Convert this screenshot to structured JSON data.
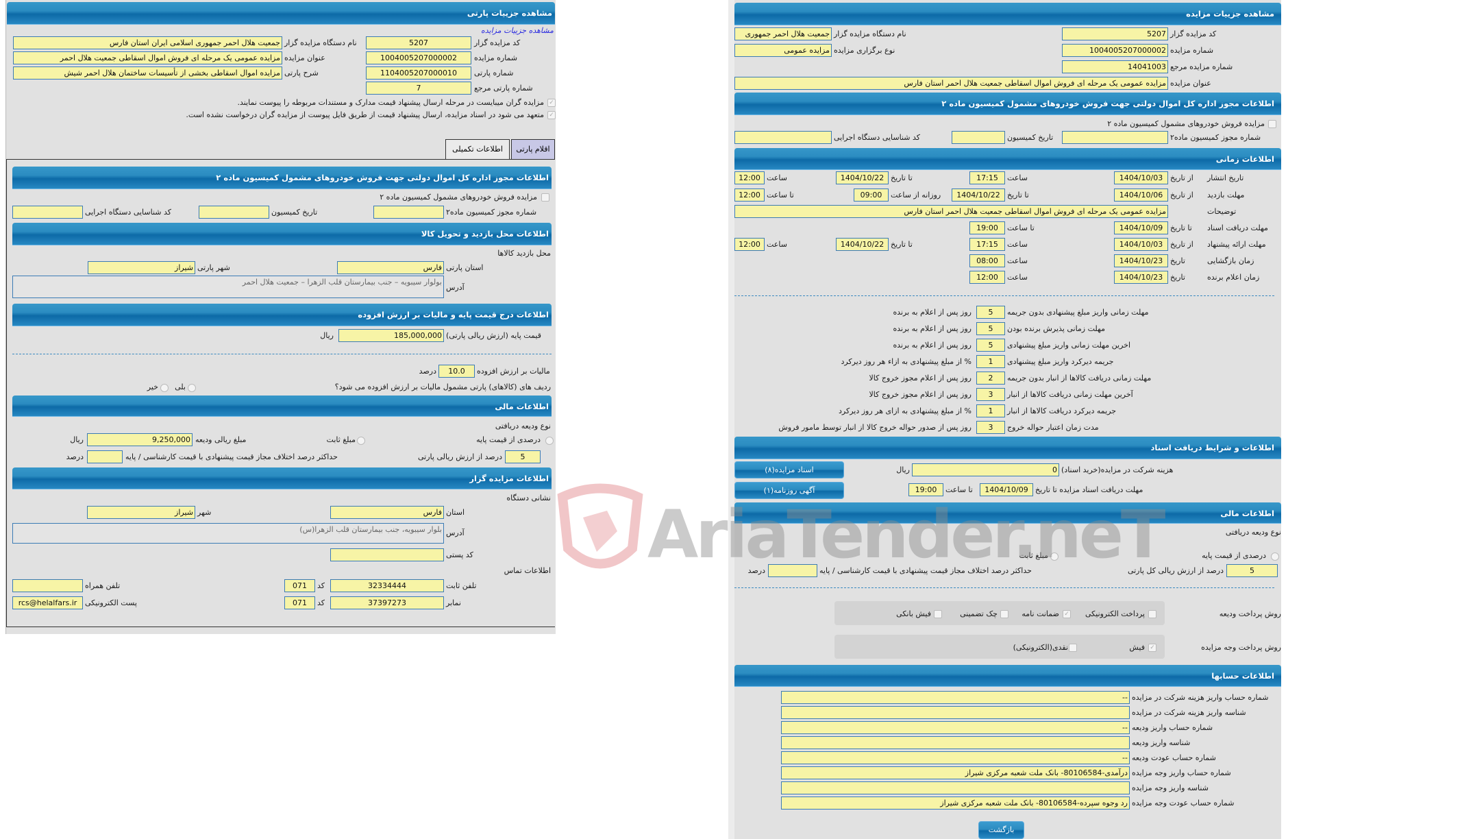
{
  "colors": {
    "header": "#2b8cc1",
    "field": "#f7f4a6",
    "panel": "#e1e1e1",
    "watermark_logo": "#e8a0a4"
  },
  "watermark": "AriaTender.neT",
  "p": {
    "header": "مشاهده جزییات پارتی",
    "link": "مشاهده جزییات مزایده",
    "code_l": "کد مزایده گزار",
    "code_v": "5207",
    "org_l": "نام دستگاه مزایده گزار",
    "org_v": "جمعیت هلال احمر جمهوری اسلامی ایران استان فارس",
    "ano_l": "شماره مزایده",
    "ano_v": "1004005207000002",
    "atitle_l": "عنوان مزایده",
    "atitle_v": "مزایده عمومی یک مرحله ای فروش اموال اسقاطی جمعیت هلال احمر",
    "pno_l": "شماره پارتی",
    "pno_v": "1104005207000010",
    "pdesc_l": "شرح پارتی",
    "pdesc_v": "مزایده اموال اسقاطی بخشی از تأسیسات ساختمان هلال احمر شیش",
    "pref_l": "شماره پارتی مرجع",
    "pref_v": "7",
    "check1": "مزایده گران میبایست در مرحله ارسال پیشنهاد قیمت مدارک و مستندات مربوطه را پیوست نمایند.",
    "check2": "متعهد می شود در اسناد مزایده، ارسال پیشنهاد قیمت از طریق فایل پیوست از مزایده گران درخواست نشده است.",
    "tab_items": "اقلام پارتی",
    "tab_extra": "اطلاعات تکمیلی",
    "lic_header": "اطلاعات مجوز اداره کل اموال دولتی جهت فروش خودروهای مشمول کمیسیون ماده ۲",
    "lic_check": "مزایده فروش خودروهای مشمول کمیسیون ماده ۲",
    "lic_no": "شماره مجوز کمیسیون ماده۲",
    "lic_date": "تاریخ کمیسیون",
    "lic_org": "کد شناسایی دستگاه اجرایی",
    "visit_header": "اطلاعات محل بازدید و تحویل کالا",
    "visit_place": "محل بازدید کالاها",
    "prov_l": "استان پارتی",
    "prov_v": "فارس",
    "city_l": "شهر پارتی",
    "city_v": "شیراز",
    "addr_l": "آدرس",
    "addr_v": "بولوار سیبویه – جنب بیمارستان قلب الزهرا – جمعیت هلال احمر",
    "price_header": "اطلاعات درج قیمت پایه و مالیات بر ارزش افزوده",
    "price_l": "قیمت پایه (ارزش ریالی پارتی)",
    "price_v": "185,000,000",
    "rial": "ریال",
    "vat_l": "مالیات بر ارزش افزوده",
    "vat_v": "10.0",
    "percent": "درصد",
    "vat_q": "ردیف های (کالاهای) پارتی مشمول مالیات بر ارزش افزوده می شود؟",
    "yes": "بلی",
    "no": "خیر",
    "fin_header": "اطلاعات مالی",
    "dep_type": "نوع ودیعه دریافتی",
    "dep_pct": "درصدی از قیمت پایه",
    "dep_fixed": "مبلغ ثابت",
    "dep_amount_l": "مبلغ ریالی ودیعه",
    "dep_amount_v": "9,250,000",
    "dep_pct_v": "5",
    "dep_pct_suffix": "درصد از ارزش ریالی پارتی",
    "maxdiff_l": "حداکثر درصد اختلاف مجاز قیمت پیشنهادی با قیمت کارشناسی / پایه",
    "org_header": "اطلاعات مزایده گزار",
    "org_addr_title": "نشانی دستگاه",
    "oprov_l": "استان",
    "oprov_v": "فارس",
    "ocity_l": "شهر",
    "ocity_v": "شیراز",
    "oaddr_l": "آدرس",
    "oaddr_v": "بلوار سیبویه، جنب بیمارستان قلب الزهرا(س)",
    "postal_l": "کد پستی",
    "contact": "اطلاعات تماس",
    "phone_l": "تلفن ثابت",
    "phone_v": "32334444",
    "code_short": "کد",
    "phone_code": "071",
    "mobile_l": "تلفن همراه",
    "fax_l": "نمابر",
    "fax_v": "37397273",
    "fax_code": "071",
    "email_l": "پست الکترونیکی",
    "email_v": "rcs@helalfars.ir"
  },
  "a": {
    "header": "مشاهده جزییات مزایده",
    "code_l": "کد مزایده گزار",
    "code_v": "5207",
    "org_l": "نام دستگاه مزایده گزار",
    "org_v": "جمعیت هلال احمر جمهوری",
    "ano_l": "شماره مزایده",
    "ano_v": "1004005207000002",
    "type_l": "نوع برگزاری مزایده",
    "type_v": "مزایده عمومی",
    "ref_l": "شماره مزایده مرجع",
    "ref_v": "14041003",
    "title_l": "عنوان مزایده",
    "title_v": "مزایده عمومی یک مرحله ای فروش اموال اسقاطی جمعیت هلال احمر استان فارس",
    "lic_header": "اطلاعات مجوز اداره کل اموال دولتی جهت فروش خودروهای مشمول کمیسیون ماده ۲",
    "lic_check": "مزایده فروش خودروهای مشمول کمیسیون ماده ۲",
    "lic_no": "شماره مجوز کمیسیون ماده۲",
    "lic_date": "تاریخ کمیسیون",
    "lic_org": "کد شناسایی دستگاه اجرایی",
    "time_header": "اطلاعات زمانی",
    "from_date": "از تاریخ",
    "to_date": "تا تاریخ",
    "date": "تاریخ",
    "hour": "ساعت",
    "to_hour": "تا ساعت",
    "daily_from": "روزانه از ساعت",
    "pub_l": "تاریخ انتشار",
    "pub_from": "1404/10/03",
    "pub_from_t": "17:15",
    "pub_to": "1404/10/22",
    "pub_to_t": "12:00",
    "visit_l": "مهلت بازدید",
    "visit_from": "1404/10/06",
    "visit_to": "1404/10/22",
    "visit_t1": "09:00",
    "visit_t2": "12:00",
    "desc_l": "توضیحات",
    "desc_v": "مزایده عمومی یک مرحله ای فروش اموال اسقاطی جمعیت هلال احمر استان فارس",
    "docs_l": "مهلت دریافت اسناد",
    "docs_to": "1404/10/09",
    "docs_t": "19:00",
    "bid_l": "مهلت ارائه پیشنهاد",
    "bid_from": "1404/10/03",
    "bid_from_t": "17:15",
    "bid_to": "1404/10/22",
    "bid_to_t": "12:00",
    "open_l": "زمان بازگشایی",
    "open_d": "1404/10/23",
    "open_t": "08:00",
    "win_l": "زمان اعلام برنده",
    "win_d": "1404/10/23",
    "win_t": "12:00",
    "rules": [
      {
        "l": "مهلت زمانی واریز مبلغ پیشنهادی بدون جریمه",
        "v": "5",
        "s": "روز پس از اعلام به برنده"
      },
      {
        "l": "مهلت زمانی پذیرش برنده بودن",
        "v": "5",
        "s": "روز پس از اعلام به برنده"
      },
      {
        "l": "اخرین مهلت زمانی واریز مبلغ پیشنهادی",
        "v": "5",
        "s": "روز پس از اعلام به برنده"
      },
      {
        "l": "جریمه دیرکرد واریز مبلغ پیشنهادی",
        "v": "1",
        "s": "% از مبلغ پیشنهادی به ازاء هر روز دیرکرد"
      },
      {
        "l": "مهلت زمانی دریافت کالاها از انبار بدون جریمه",
        "v": "2",
        "s": "روز پس از اعلام مجوز خروج کالا"
      },
      {
        "l": "آخرین مهلت زمانی دریافت کالاها از انبار",
        "v": "3",
        "s": "روز پس از اعلام مجوز خروج کالا"
      },
      {
        "l": "جریمه دیرکرد دریافت کالاها از انبار",
        "v": "1",
        "s": "% از مبلغ پیشنهادی به ازای هر روز دیرکرد"
      },
      {
        "l": "مدت زمان اعتبار حواله خروج",
        "v": "3",
        "s": "روز پس از صدور حواله خروج کالا از انبار توسط مامور فروش"
      }
    ],
    "doc_header": "اطلاعات و شرایط دریافت اسناد",
    "btn_docs": "اسناد مزایده(۸)",
    "btn_ad": "آگهی روزنامه(۱)",
    "fee_l": "هزینه شرکت در مزایده(خرید اسناد)",
    "fee_v": "0",
    "rial": "ریال",
    "dl_l": "مهلت دریافت اسناد مزایده تا تاریخ",
    "dl_d": "1404/10/09",
    "dl_t": "19:00",
    "fin_header": "اطلاعات مالی",
    "dep_type": "نوع ودیعه دریافتی",
    "dep_pct": "درصدی از قیمت پایه",
    "dep_fixed": "مبلغ ثابت",
    "dep_pct_v": "5",
    "dep_pct_suffix": "درصد از ارزش ریالی کل پارتی",
    "maxdiff_l": "حداکثر درصد اختلاف مجاز قیمت پیشنهادی با قیمت کارشناسی / پایه",
    "percent": "درصد",
    "paydep_l": "روش پرداخت ودیعه",
    "pay_epay": "پرداخت الکترونیکی",
    "pay_guar": "ضمانت نامه",
    "pay_check": "چک تضمینی",
    "pay_slip": "فیش بانکی",
    "payamt_l": "روش پرداخت وجه مزایده",
    "pay_fish": "فیش",
    "pay_cash": "نقدی(الکترونیکی)",
    "acc_header": "اطلاعات حسابها",
    "accounts": [
      {
        "l": "شماره حساب واریز هزینه شرکت در مزایده",
        "v": "--"
      },
      {
        "l": "شناسه واریز هزینه شرکت در مزایده",
        "v": ""
      },
      {
        "l": "شماره حساب واریز ودیعه",
        "v": "--"
      },
      {
        "l": "شناسه واریز ودیعه",
        "v": ""
      },
      {
        "l": "شماره حساب عودت ودیعه",
        "v": "--"
      },
      {
        "l": "شماره حساب واریز وجه مزایده",
        "v": "درآمدی-80106584- بانک ملت شعبه مرکزی شیراز"
      },
      {
        "l": "شناسه واریز وجه مزایده",
        "v": ""
      },
      {
        "l": "شماره حساب عودت وجه مزایده",
        "v": "رد وجوه سپرده-80106584- بانک ملت شعبه مرکزی شیراز"
      }
    ],
    "back": "بازگشت"
  }
}
